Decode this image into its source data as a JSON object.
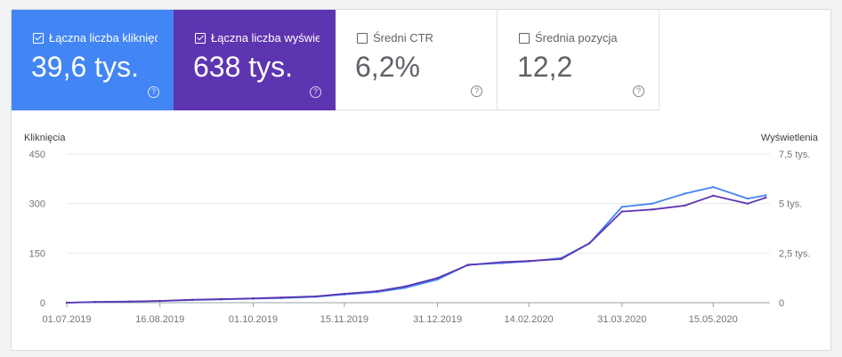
{
  "metrics": [
    {
      "label": "Łączna liczba kliknięć",
      "value": "39,6 tys.",
      "checked": true,
      "color": "#4285f4"
    },
    {
      "label": "Łączna liczba wyświetleń",
      "value": "638 tys.",
      "checked": true,
      "color": "#5e35b1"
    },
    {
      "label": "Średni CTR",
      "value": "6,2%",
      "checked": false,
      "color": "#ffffff"
    },
    {
      "label": "Średnia pozycja",
      "value": "12,2",
      "checked": false,
      "color": "#ffffff"
    }
  ],
  "help_glyph": "?",
  "chart_data": {
    "type": "line",
    "y_left_label": "Kliknięcia",
    "y_right_label": "Wyświetlenia",
    "y_left_ticks": [
      "0",
      "150",
      "300",
      "450"
    ],
    "y_left_range": [
      0,
      450
    ],
    "y_right_ticks": [
      "0",
      "2,5 tys.",
      "5 tys.",
      "7,5 tys."
    ],
    "y_right_range": [
      0,
      7500
    ],
    "x_ticks": [
      "01.07.2019",
      "16.08.2019",
      "01.10.2019",
      "15.11.2019",
      "31.12.2019",
      "14.02.2020",
      "31.03.2020",
      "15.05.2020"
    ],
    "x_dates": [
      "2019-07-01",
      "2019-07-15",
      "2019-08-01",
      "2019-08-16",
      "2019-09-01",
      "2019-09-15",
      "2019-10-01",
      "2019-10-15",
      "2019-11-01",
      "2019-11-15",
      "2019-12-01",
      "2019-12-15",
      "2019-12-31",
      "2020-01-15",
      "2020-02-01",
      "2020-02-14",
      "2020-03-01",
      "2020-03-15",
      "2020-03-31",
      "2020-04-15",
      "2020-05-01",
      "2020-05-15",
      "2020-06-01",
      "2020-06-10"
    ],
    "series": [
      {
        "name": "Kliknięcia",
        "axis": "left",
        "color": "#4285f4",
        "values": [
          0,
          2,
          3,
          5,
          8,
          10,
          12,
          14,
          18,
          25,
          32,
          45,
          70,
          115,
          120,
          125,
          135,
          180,
          290,
          300,
          330,
          350,
          315,
          325
        ]
      },
      {
        "name": "Wyświetlenia",
        "axis": "right",
        "color": "#5e35b1",
        "values": [
          0,
          40,
          60,
          90,
          150,
          180,
          220,
          260,
          320,
          450,
          580,
          820,
          1250,
          1900,
          2050,
          2100,
          2200,
          3000,
          4600,
          4700,
          4900,
          5400,
          5000,
          5300
        ]
      }
    ],
    "grid": true
  }
}
